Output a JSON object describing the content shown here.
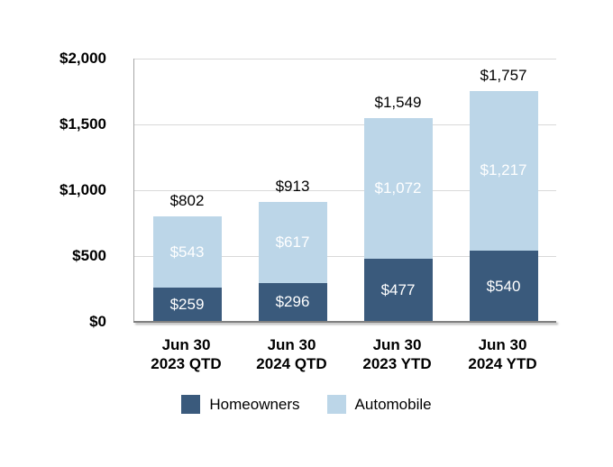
{
  "chart_data": {
    "type": "bar",
    "stacked": true,
    "title": "",
    "categories": [
      {
        "line1": "Jun 30",
        "line2": "2023 QTD"
      },
      {
        "line1": "Jun 30",
        "line2": "2024 QTD"
      },
      {
        "line1": "Jun 30",
        "line2": "2023 YTD"
      },
      {
        "line1": "Jun 30",
        "line2": "2024 YTD"
      }
    ],
    "series": [
      {
        "name": "Homeowners",
        "color": "#3A5A7C",
        "label_color": "#ffffff",
        "values": [
          259,
          296,
          477,
          540
        ],
        "value_labels": [
          "$259",
          "$296",
          "$477",
          "$540"
        ]
      },
      {
        "name": "Automobile",
        "color": "#BCD6E8",
        "label_color": "#ffffff",
        "values": [
          543,
          617,
          1072,
          1217
        ],
        "value_labels": [
          "$543",
          "$617",
          "$1,072",
          "$1,217"
        ]
      }
    ],
    "totals": {
      "values": [
        802,
        913,
        1549,
        1757
      ],
      "labels": [
        "$802",
        "$913",
        "$1,549",
        "$1,757"
      ],
      "color": "#000000"
    },
    "y_axis": {
      "min": 0,
      "max": 2000,
      "ticks": [
        {
          "value": 0,
          "label": "$0"
        },
        {
          "value": 500,
          "label": "$500"
        },
        {
          "value": 1000,
          "label": "$1,000"
        },
        {
          "value": 1500,
          "label": "$1,500"
        },
        {
          "value": 2000,
          "label": "$2,000"
        }
      ]
    },
    "grid": true,
    "gridline_color": "#d9d9d9",
    "axis_line_color": "#a6a6a6",
    "baseline_color": "#808080",
    "legend_position": "bottom"
  }
}
